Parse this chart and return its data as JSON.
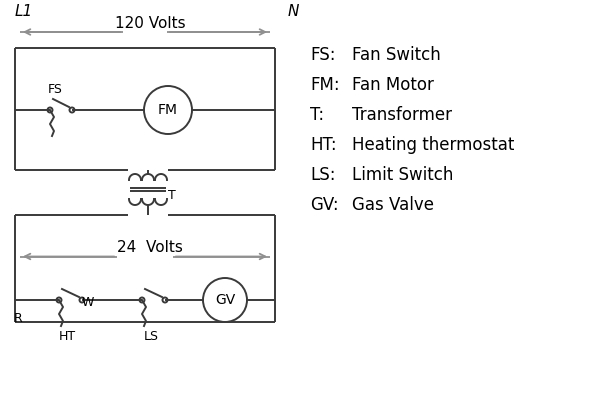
{
  "bg_color": "#ffffff",
  "line_color": "#3a3a3a",
  "arrow_color": "#909090",
  "text_color": "#000000",
  "legend": [
    [
      "FS:",
      "Fan Switch"
    ],
    [
      "FM:",
      "Fan Motor"
    ],
    [
      "T:",
      "Transformer"
    ],
    [
      "HT:",
      "Heating thermostat"
    ],
    [
      "LS:",
      "Limit Switch"
    ],
    [
      "GV:",
      "Gas Valve"
    ]
  ],
  "L1_label": "L1",
  "N_label": "N",
  "v120_label": "120 Volts",
  "v24_label": "24  Volts",
  "T_label": "T",
  "FS_label": "FS",
  "FM_label": "FM",
  "R_label": "R",
  "W_label": "W",
  "HT_label": "HT",
  "LS_label": "LS",
  "GV_label": "GV"
}
